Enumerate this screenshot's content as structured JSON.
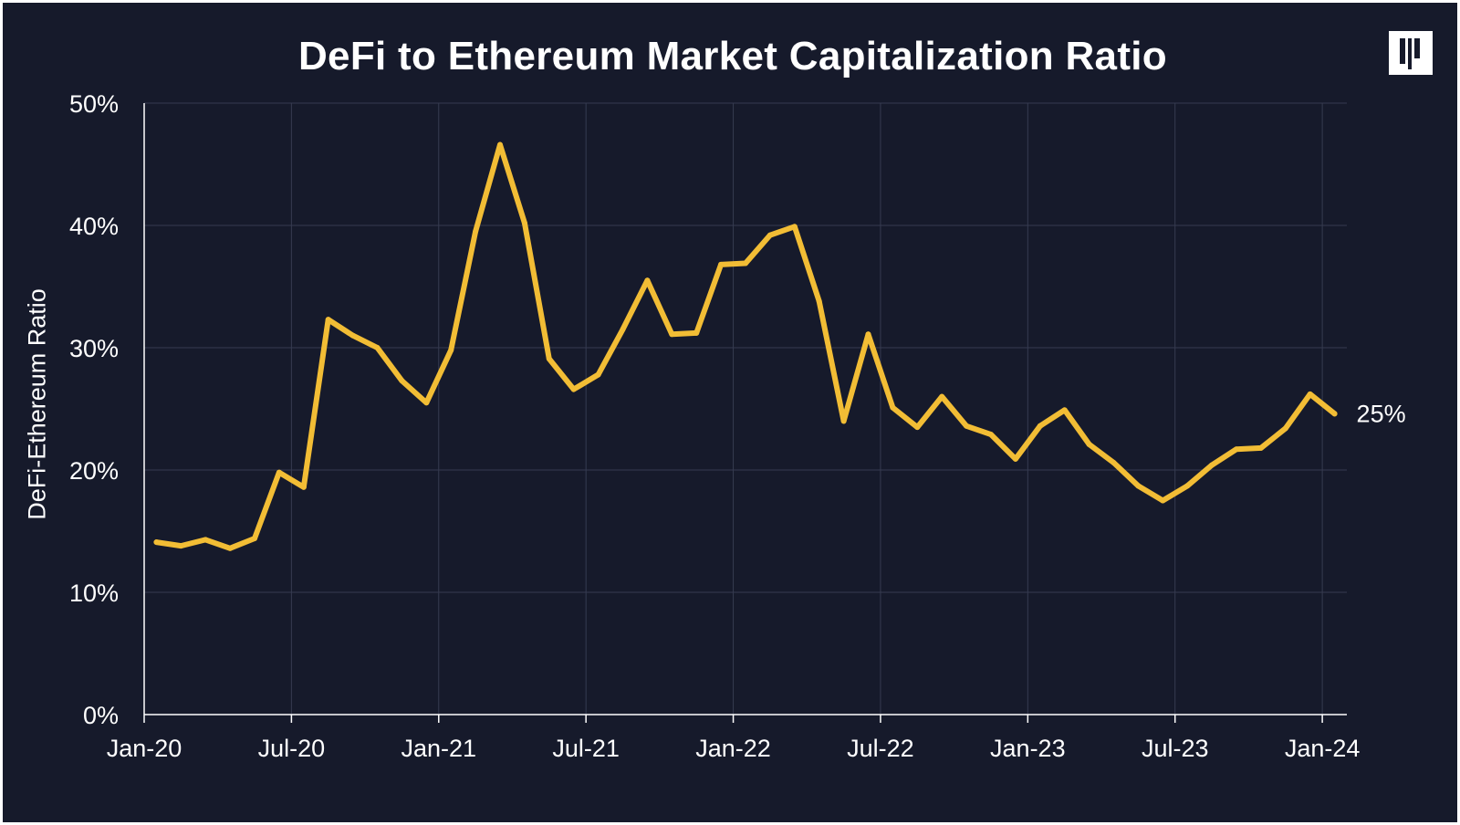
{
  "colors": {
    "background": "#161a2b",
    "line": "#f2bd35",
    "grid": "#363b50",
    "axis": "#ffffff",
    "text": "#ffffff"
  },
  "logo": {
    "icon": "bar-stripes-logo-icon"
  },
  "chart_data": {
    "type": "line",
    "title": "DeFi to Ethereum Market Capitalization Ratio",
    "xlabel": "",
    "ylabel": "DeFi-Ethereum Ratio",
    "ylim": [
      0,
      50
    ],
    "xlim_months": [
      0,
      49
    ],
    "y_ticks": [
      {
        "value": 0,
        "label": "0%"
      },
      {
        "value": 10,
        "label": "10%"
      },
      {
        "value": 20,
        "label": "20%"
      },
      {
        "value": 30,
        "label": "30%"
      },
      {
        "value": 40,
        "label": "40%"
      },
      {
        "value": 50,
        "label": "50%"
      }
    ],
    "x_ticks": [
      {
        "month": 0,
        "label": "Jan-20"
      },
      {
        "month": 6,
        "label": "Jul-20"
      },
      {
        "month": 12,
        "label": "Jan-21"
      },
      {
        "month": 18,
        "label": "Jul-21"
      },
      {
        "month": 24,
        "label": "Jan-22"
      },
      {
        "month": 30,
        "label": "Jul-22"
      },
      {
        "month": 36,
        "label": "Jan-23"
      },
      {
        "month": 42,
        "label": "Jul-23"
      },
      {
        "month": 48,
        "label": "Jan-24"
      }
    ],
    "grid": true,
    "end_label": "25%",
    "series": [
      {
        "name": "DeFi-Ethereum Ratio",
        "x": [
          0.5,
          1.5,
          2.5,
          3.5,
          4.5,
          5.5,
          6.5,
          7.5,
          8.5,
          9.5,
          10.5,
          11.5,
          12.5,
          13.5,
          14.5,
          15.5,
          16.5,
          17.5,
          18.5,
          19.5,
          20.5,
          21.5,
          22.5,
          23.5,
          24.5,
          25.5,
          26.5,
          27.5,
          28.5,
          29.5,
          30.5,
          31.5,
          32.5,
          33.5,
          34.5,
          35.5,
          36.5,
          37.5,
          38.5,
          39.5,
          40.5,
          41.5,
          42.5,
          43.5,
          44.5,
          45.5,
          46.5,
          47.5,
          48.5
        ],
        "values": [
          14.1,
          13.8,
          14.3,
          13.6,
          14.4,
          19.8,
          18.6,
          32.3,
          31.0,
          30.0,
          27.3,
          25.5,
          29.8,
          39.5,
          46.6,
          40.2,
          29.1,
          26.6,
          27.8,
          31.5,
          35.5,
          31.1,
          31.2,
          36.8,
          36.9,
          39.2,
          39.9,
          33.8,
          24.0,
          31.1,
          25.1,
          23.5,
          26.0,
          23.6,
          22.9,
          20.9,
          23.6,
          24.9,
          22.1,
          20.6,
          18.7,
          17.5,
          18.7,
          20.4,
          21.7,
          21.8,
          23.4,
          26.2,
          24.6
        ]
      }
    ]
  }
}
